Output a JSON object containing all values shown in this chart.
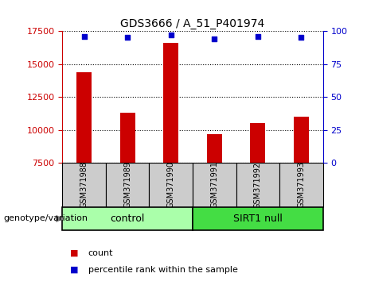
{
  "title": "GDS3666 / A_51_P401974",
  "samples": [
    "GSM371988",
    "GSM371989",
    "GSM371990",
    "GSM371991",
    "GSM371992",
    "GSM371993"
  ],
  "counts": [
    14400,
    11300,
    16600,
    9700,
    10500,
    11000
  ],
  "percentile_ranks": [
    96,
    95,
    97,
    94,
    96,
    95
  ],
  "ylim_left": [
    7500,
    17500
  ],
  "ylim_right": [
    0,
    100
  ],
  "yticks_left": [
    7500,
    10000,
    12500,
    15000,
    17500
  ],
  "yticks_right": [
    0,
    25,
    50,
    75,
    100
  ],
  "bar_color": "#cc0000",
  "dot_color": "#0000cc",
  "bar_width": 0.35,
  "groups": [
    {
      "label": "control",
      "indices": [
        0,
        1,
        2
      ],
      "color": "#aaffaa"
    },
    {
      "label": "SIRT1 null",
      "indices": [
        3,
        4,
        5
      ],
      "color": "#44dd44"
    }
  ],
  "genotype_label": "genotype/variation",
  "legend_count_label": "count",
  "legend_percentile_label": "percentile rank within the sample",
  "grid_color": "#000000",
  "tick_color_left": "#cc0000",
  "tick_color_right": "#0000cc",
  "background_color": "#ffffff",
  "xticklabels_bg": "#cccccc"
}
